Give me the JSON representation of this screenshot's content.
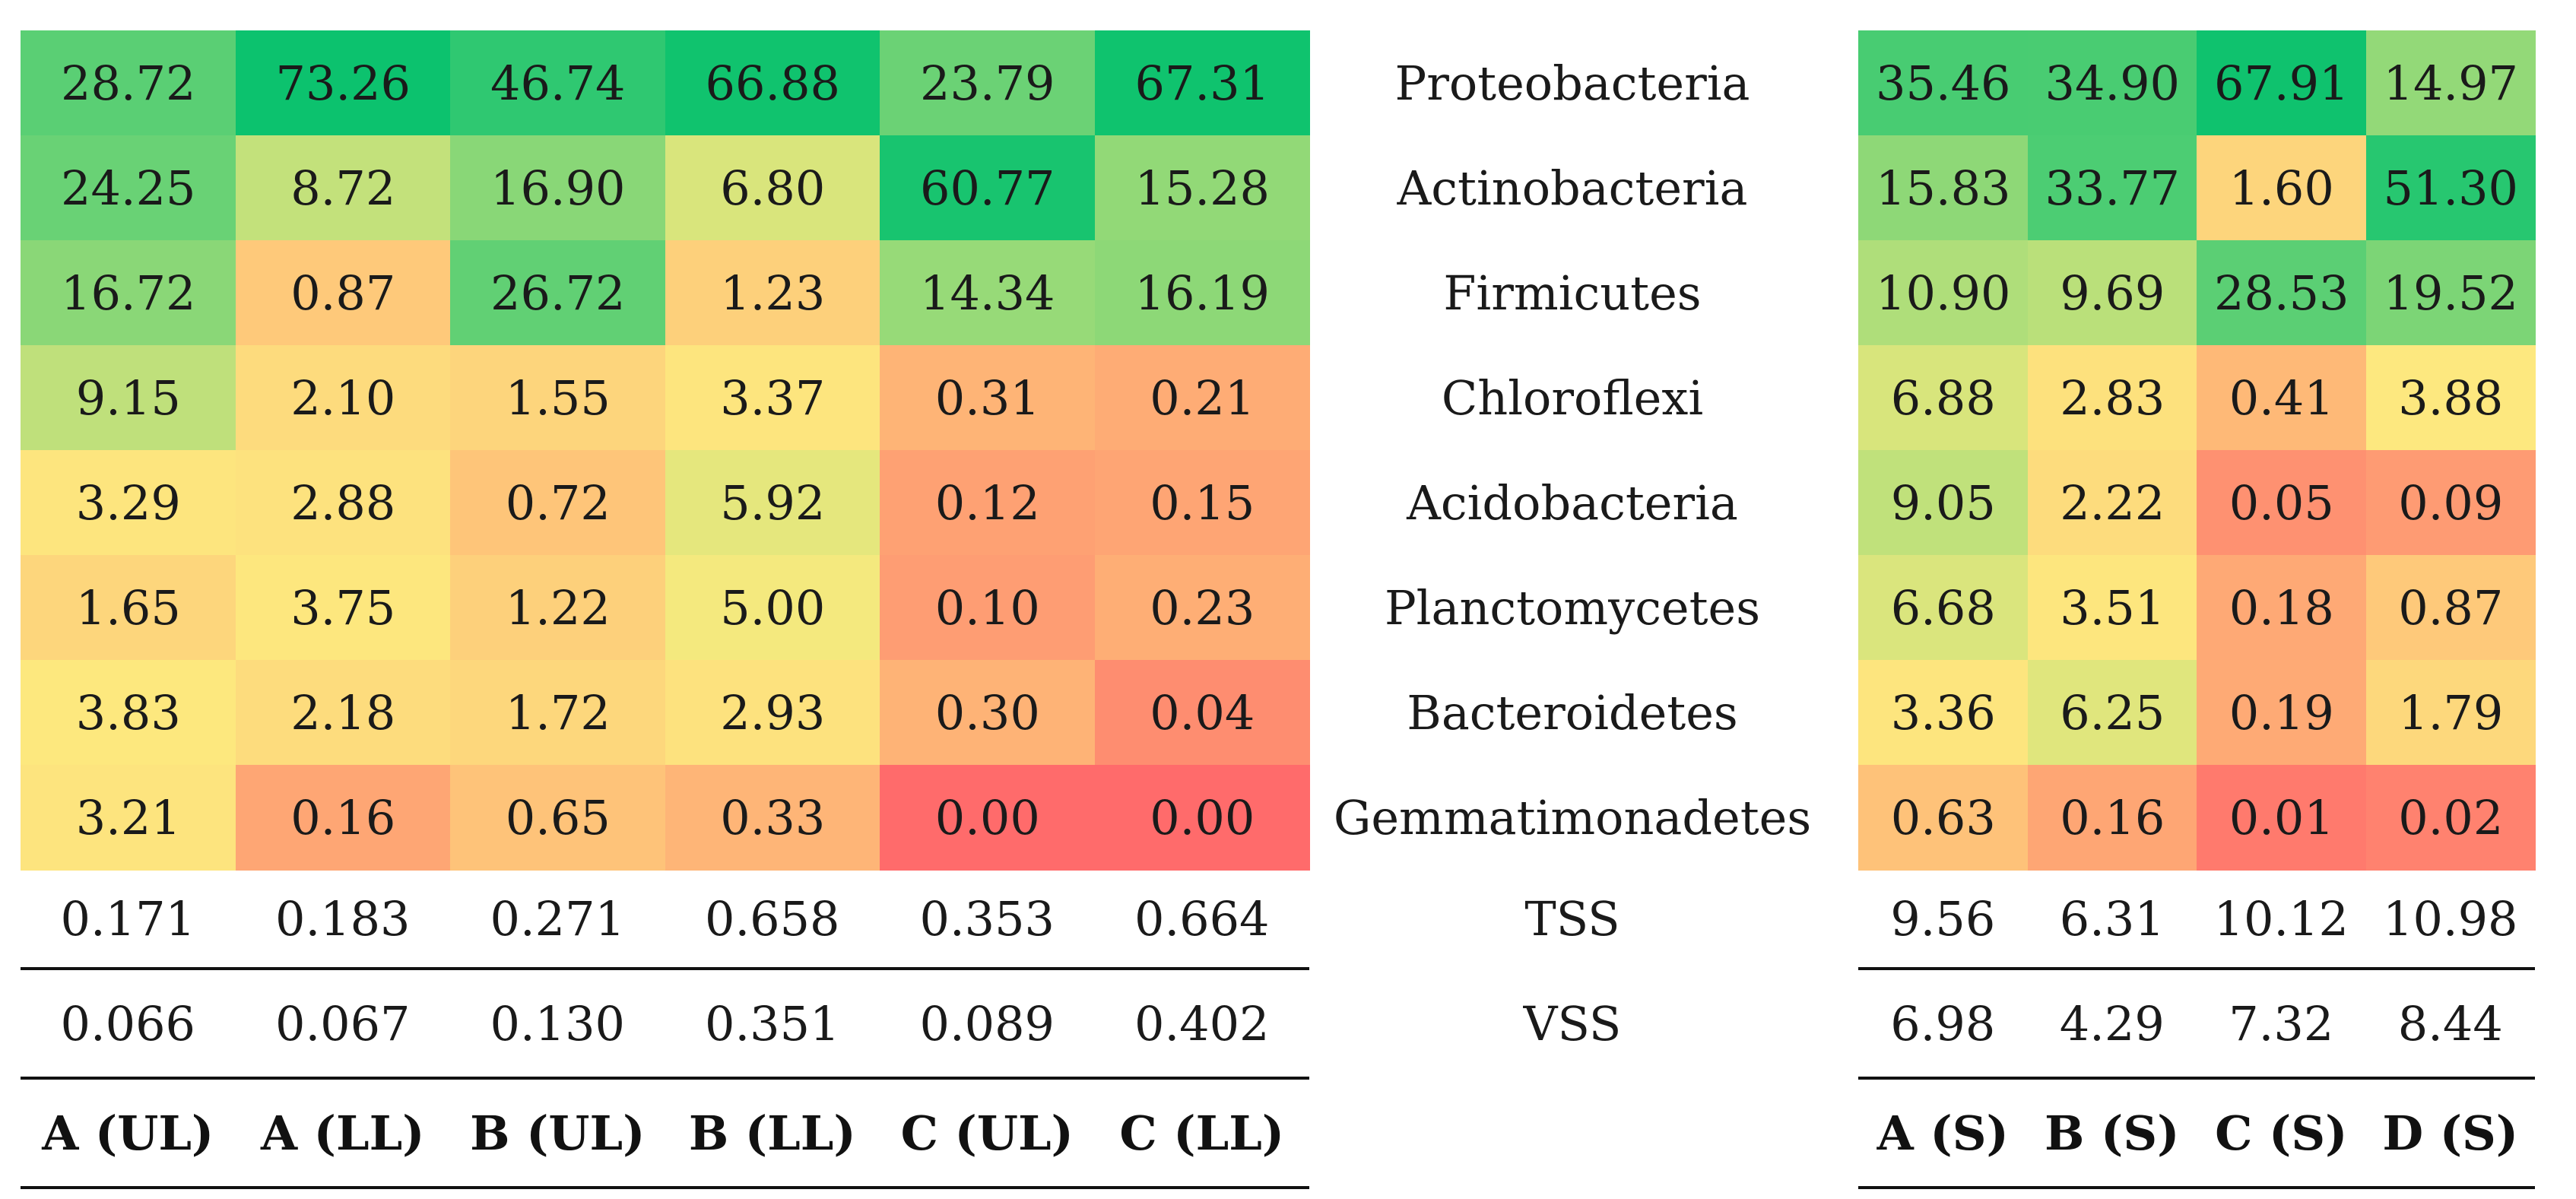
{
  "chart_data": {
    "type": "heatmap",
    "colormap": {
      "low": "#ff6b6b",
      "mid": "#fdeb7f",
      "high": "#0cc26e"
    },
    "phyla": [
      "Proteobacteria",
      "Actinobacteria",
      "Firmicutes",
      "Chloroflexi",
      "Acidobacteria",
      "Planctomycetes",
      "Bacteroidetes",
      "Gemmatimonadetes"
    ],
    "left": {
      "columns": [
        "A (UL)",
        "A (LL)",
        "B (UL)",
        "B (LL)",
        "C (UL)",
        "C (LL)"
      ],
      "values": [
        [
          "28.72",
          "73.26",
          "46.74",
          "66.88",
          "23.79",
          "67.31"
        ],
        [
          "24.25",
          "8.72",
          "16.90",
          "6.80",
          "60.77",
          "15.28"
        ],
        [
          "16.72",
          "0.87",
          "26.72",
          "1.23",
          "14.34",
          "16.19"
        ],
        [
          "9.15",
          "2.10",
          "1.55",
          "3.37",
          "0.31",
          "0.21"
        ],
        [
          "3.29",
          "2.88",
          "0.72",
          "5.92",
          "0.12",
          "0.15"
        ],
        [
          "1.65",
          "3.75",
          "1.22",
          "5.00",
          "0.10",
          "0.23"
        ],
        [
          "3.83",
          "2.18",
          "1.72",
          "2.93",
          "0.30",
          "0.04"
        ],
        [
          "3.21",
          "0.16",
          "0.65",
          "0.33",
          "0.00",
          "0.00"
        ]
      ],
      "tss": [
        "0.171",
        "0.183",
        "0.271",
        "0.658",
        "0.353",
        "0.664"
      ],
      "vss": [
        "0.066",
        "0.067",
        "0.130",
        "0.351",
        "0.089",
        "0.402"
      ]
    },
    "right": {
      "columns": [
        "A (S)",
        "B (S)",
        "C (S)",
        "D (S)"
      ],
      "values": [
        [
          "35.46",
          "34.90",
          "67.91",
          "14.97"
        ],
        [
          "15.83",
          "33.77",
          "1.60",
          "51.30"
        ],
        [
          "10.90",
          "9.69",
          "28.53",
          "19.52"
        ],
        [
          "6.88",
          "2.83",
          "0.41",
          "3.88"
        ],
        [
          "9.05",
          "2.22",
          "0.05",
          "0.09"
        ],
        [
          "6.68",
          "3.51",
          "0.18",
          "0.87"
        ],
        [
          "3.36",
          "6.25",
          "0.19",
          "1.79"
        ],
        [
          "0.63",
          "0.16",
          "0.01",
          "0.02"
        ]
      ],
      "tss": [
        "9.56",
        "6.31",
        "10.12",
        "10.98"
      ],
      "vss": [
        "6.98",
        "4.29",
        "7.32",
        "8.44"
      ]
    },
    "row_labels": {
      "tss": "TSS",
      "vss": "VSS"
    }
  }
}
